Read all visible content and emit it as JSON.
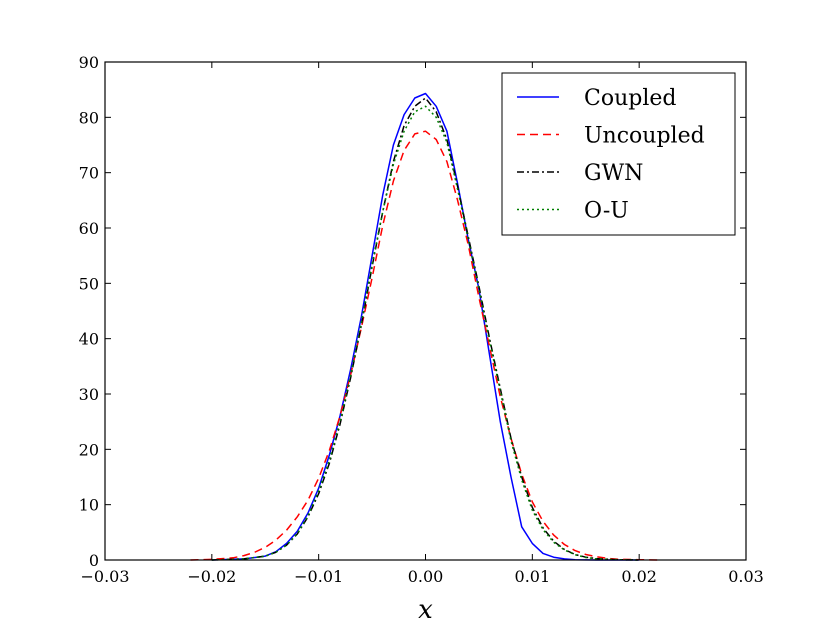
{
  "chart_data": {
    "type": "line",
    "title": "",
    "xlabel": "x",
    "ylabel": "",
    "xlim": [
      -0.03,
      0.03
    ],
    "ylim": [
      0,
      90
    ],
    "x_ticks": [
      -0.03,
      -0.02,
      -0.01,
      0.0,
      0.01,
      0.02,
      0.03
    ],
    "x_tick_labels": [
      "−0.03",
      "−0.02",
      "−0.01",
      "0.00",
      "0.01",
      "0.02",
      "0.03"
    ],
    "y_ticks": [
      0,
      10,
      20,
      30,
      40,
      50,
      60,
      70,
      80,
      90
    ],
    "y_tick_labels": [
      "0",
      "10",
      "20",
      "30",
      "40",
      "50",
      "60",
      "70",
      "80",
      "90"
    ],
    "grid": false,
    "legend_position": "top-right",
    "series": [
      {
        "name": "Coupled",
        "color": "#0000ff",
        "style": "solid",
        "x": [
          -0.02,
          -0.017,
          -0.015,
          -0.014,
          -0.013,
          -0.012,
          -0.011,
          -0.01,
          -0.009,
          -0.008,
          -0.007,
          -0.006,
          -0.005,
          -0.004,
          -0.003,
          -0.002,
          -0.001,
          0.0,
          0.001,
          0.002,
          0.003,
          0.004,
          0.005,
          0.006,
          0.007,
          0.008,
          0.009,
          0.01,
          0.011,
          0.012,
          0.013,
          0.014,
          0.016,
          0.02
        ],
        "y": [
          0,
          0.2,
          0.7,
          1.5,
          3.0,
          5.2,
          8.5,
          13.0,
          19.0,
          26.0,
          34.5,
          44.0,
          55.0,
          66.0,
          75.0,
          80.5,
          83.5,
          84.3,
          82.0,
          77.5,
          68.0,
          58.0,
          49.0,
          37.0,
          25.0,
          15.0,
          6.0,
          3.0,
          1.2,
          0.5,
          0.2,
          0.05,
          0,
          0
        ]
      },
      {
        "name": "Uncoupled",
        "color": "#ff0000",
        "style": "dashed",
        "x": [
          -0.022,
          -0.02,
          -0.018,
          -0.017,
          -0.016,
          -0.015,
          -0.014,
          -0.013,
          -0.012,
          -0.011,
          -0.01,
          -0.009,
          -0.008,
          -0.007,
          -0.006,
          -0.005,
          -0.004,
          -0.003,
          -0.002,
          -0.001,
          0.0,
          0.001,
          0.002,
          0.003,
          0.004,
          0.005,
          0.006,
          0.007,
          0.008,
          0.009,
          0.01,
          0.011,
          0.012,
          0.013,
          0.014,
          0.015,
          0.016,
          0.017,
          0.018,
          0.02,
          0.022
        ],
        "y": [
          0,
          0.1,
          0.4,
          0.8,
          1.4,
          2.3,
          3.6,
          5.4,
          7.8,
          10.8,
          14.8,
          19.8,
          26.0,
          33.5,
          42.0,
          51.0,
          60.5,
          68.5,
          74.0,
          77.0,
          77.5,
          76.0,
          72.0,
          65.0,
          57.0,
          47.5,
          38.5,
          29.5,
          22.0,
          15.5,
          10.5,
          7.0,
          4.5,
          2.8,
          1.7,
          1.0,
          0.6,
          0.3,
          0.15,
          0.05,
          0
        ]
      },
      {
        "name": "GWN",
        "color": "#000000",
        "style": "dashdot",
        "x": [
          -0.02,
          -0.017,
          -0.015,
          -0.014,
          -0.013,
          -0.012,
          -0.011,
          -0.01,
          -0.009,
          -0.008,
          -0.007,
          -0.006,
          -0.005,
          -0.004,
          -0.003,
          -0.002,
          -0.001,
          0.0,
          0.001,
          0.002,
          0.003,
          0.004,
          0.005,
          0.006,
          0.007,
          0.008,
          0.009,
          0.01,
          0.011,
          0.012,
          0.013,
          0.014,
          0.015,
          0.016,
          0.018,
          0.02
        ],
        "y": [
          0,
          0.2,
          0.7,
          1.4,
          2.7,
          4.7,
          7.8,
          12.0,
          17.5,
          24.5,
          33.0,
          42.5,
          53.0,
          63.0,
          72.0,
          78.5,
          82.0,
          83.5,
          81.0,
          76.0,
          67.5,
          58.5,
          49.5,
          40.0,
          31.0,
          22.0,
          15.0,
          9.5,
          5.8,
          3.4,
          1.9,
          1.0,
          0.5,
          0.25,
          0.05,
          0
        ]
      },
      {
        "name": "O-U",
        "color": "#008000",
        "style": "dotted",
        "x": [
          -0.02,
          -0.017,
          -0.015,
          -0.014,
          -0.013,
          -0.012,
          -0.011,
          -0.01,
          -0.009,
          -0.008,
          -0.007,
          -0.006,
          -0.005,
          -0.004,
          -0.003,
          -0.002,
          -0.001,
          0.0,
          0.001,
          0.002,
          0.003,
          0.004,
          0.005,
          0.006,
          0.007,
          0.008,
          0.009,
          0.01,
          0.011,
          0.012,
          0.013,
          0.014,
          0.015,
          0.016,
          0.018,
          0.02
        ],
        "y": [
          0,
          0.2,
          0.7,
          1.4,
          2.7,
          4.8,
          8.0,
          12.5,
          18.0,
          25.0,
          33.5,
          43.0,
          53.5,
          63.0,
          71.5,
          77.5,
          81.0,
          82.0,
          80.0,
          75.5,
          67.0,
          58.0,
          49.0,
          39.5,
          30.5,
          21.5,
          14.5,
          9.0,
          5.5,
          3.2,
          1.8,
          0.95,
          0.45,
          0.2,
          0.05,
          0
        ]
      }
    ]
  }
}
